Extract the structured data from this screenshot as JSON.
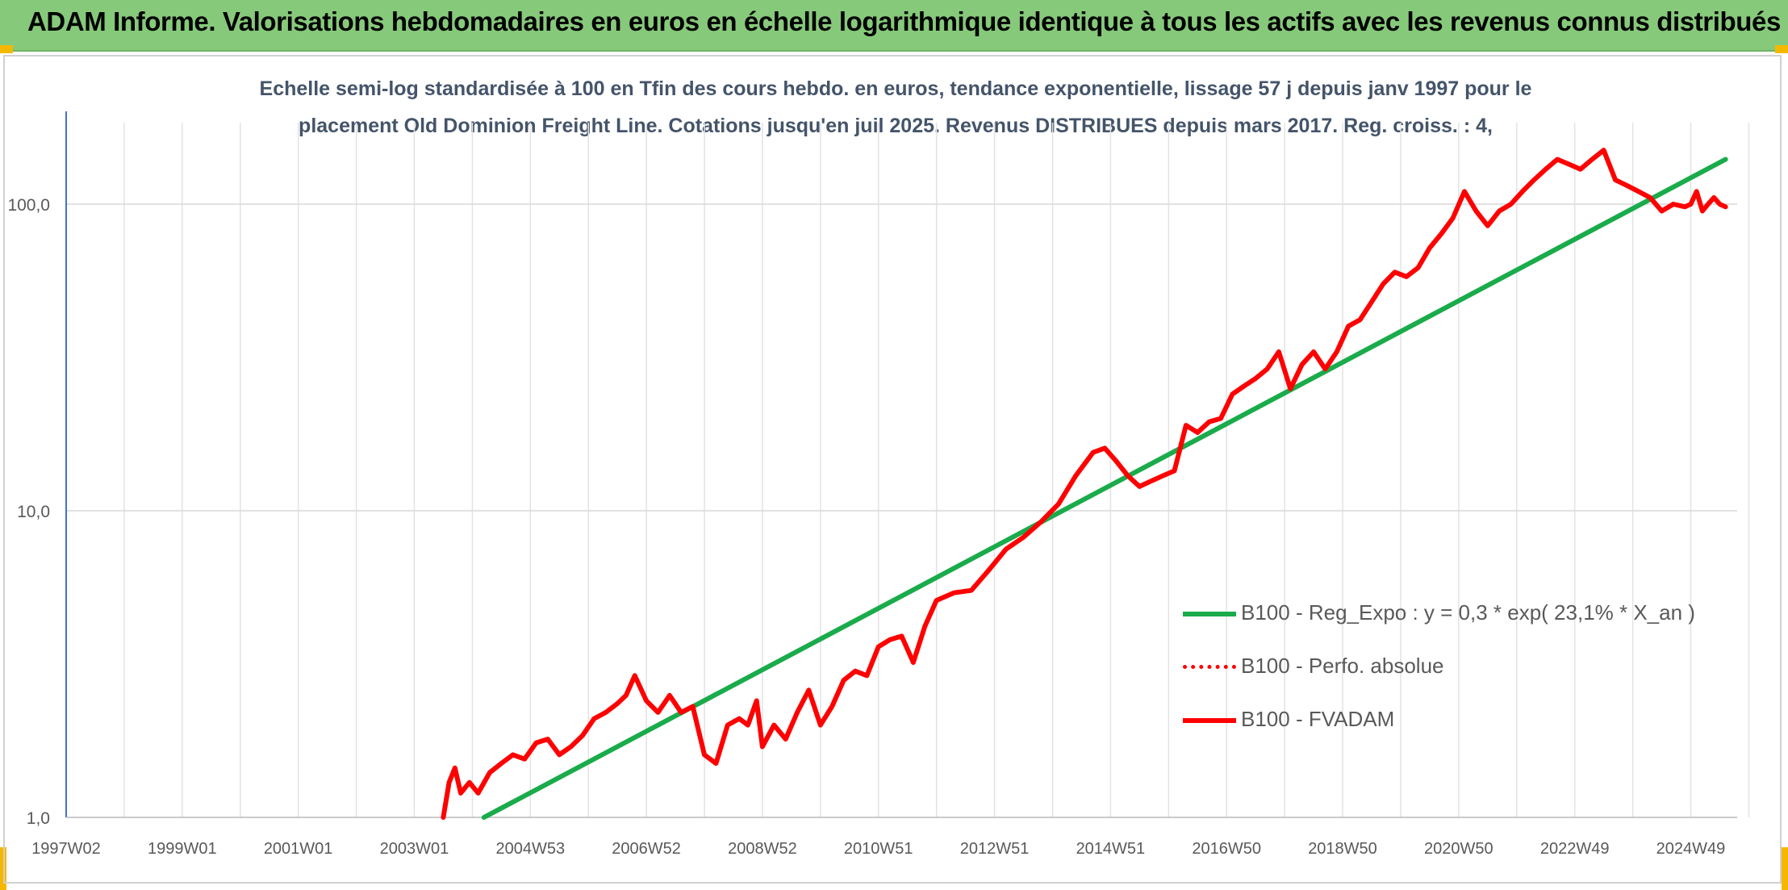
{
  "header": {
    "title": "ADAM Informe. Valorisations hebdomadaires en euros en échelle logarithmique identique à tous les actifs avec les revenus connus distribués"
  },
  "chart_data": {
    "type": "line",
    "title_lines": [
      "Echelle semi-log standardisée à 100 en Tfin des cours hebdo. en euros, tendance exponentielle, lissage 57 j depuis janv 1997 pour le",
      "placement Old Dominion Freight Line. Cotations jusqu'en juil 2025. Revenus DISTRIBUES depuis mars 2017. Reg. croiss. : 4,"
    ],
    "y_scale": "log",
    "ylim": [
      1,
      200
    ],
    "y_ticks": [
      {
        "value": 1,
        "label": "1,0"
      },
      {
        "value": 10,
        "label": "10,0"
      },
      {
        "value": 100,
        "label": "100,0"
      }
    ],
    "xlim": [
      1997.0,
      2025.8
    ],
    "x_ticks": [
      {
        "value": 1997.0,
        "label": "1997W02"
      },
      {
        "value": 1999.0,
        "label": "1999W01"
      },
      {
        "value": 2001.0,
        "label": "2001W01"
      },
      {
        "value": 2003.0,
        "label": "2003W01"
      },
      {
        "value": 2005.0,
        "label": "2004W53"
      },
      {
        "value": 2007.0,
        "label": "2006W52"
      },
      {
        "value": 2009.0,
        "label": "2008W52"
      },
      {
        "value": 2011.0,
        "label": "2010W51"
      },
      {
        "value": 2013.0,
        "label": "2012W51"
      },
      {
        "value": 2015.0,
        "label": "2014W51"
      },
      {
        "value": 2017.0,
        "label": "2016W50"
      },
      {
        "value": 2019.0,
        "label": "2018W50"
      },
      {
        "value": 2021.0,
        "label": "2020W50"
      },
      {
        "value": 2023.0,
        "label": "2022W49"
      },
      {
        "value": 2025.0,
        "label": "2024W49"
      }
    ],
    "grid": true,
    "legend_position": "right",
    "series": [
      {
        "name": "B100 - Reg_Expo : y = 0,3 * exp( 23,1% *  X_an )",
        "color": "#1aab4b",
        "style": "solid",
        "x": [
          2004.2,
          2025.6
        ],
        "y": [
          1.0,
          140
        ]
      },
      {
        "name": "B100 - Perfo. absolue",
        "color": "#ff0000",
        "style": "dotted",
        "x": [],
        "y": []
      },
      {
        "name": "B100 - FVADAM",
        "color": "#ff0000",
        "style": "solid",
        "x": [
          2003.5,
          2003.6,
          2003.7,
          2003.8,
          2003.95,
          2004.1,
          2004.3,
          2004.5,
          2004.7,
          2004.9,
          2005.1,
          2005.3,
          2005.5,
          2005.7,
          2005.9,
          2006.1,
          2006.3,
          2006.5,
          2006.65,
          2006.8,
          2007.0,
          2007.2,
          2007.4,
          2007.6,
          2007.8,
          2008.0,
          2008.2,
          2008.4,
          2008.6,
          2008.75,
          2008.9,
          2009.0,
          2009.2,
          2009.4,
          2009.6,
          2009.8,
          2010.0,
          2010.2,
          2010.4,
          2010.6,
          2010.8,
          2011.0,
          2011.2,
          2011.4,
          2011.6,
          2011.8,
          2012.0,
          2012.3,
          2012.6,
          2012.9,
          2013.2,
          2013.5,
          2013.8,
          2014.1,
          2014.4,
          2014.7,
          2014.9,
          2015.1,
          2015.3,
          2015.5,
          2015.7,
          2015.9,
          2016.1,
          2016.3,
          2016.5,
          2016.7,
          2016.9,
          2017.1,
          2017.3,
          2017.5,
          2017.7,
          2017.9,
          2018.1,
          2018.3,
          2018.5,
          2018.7,
          2018.9,
          2019.1,
          2019.3,
          2019.5,
          2019.7,
          2019.9,
          2020.1,
          2020.3,
          2020.5,
          2020.7,
          2020.9,
          2021.1,
          2021.3,
          2021.5,
          2021.7,
          2021.9,
          2022.1,
          2022.3,
          2022.5,
          2022.7,
          2022.9,
          2023.1,
          2023.3,
          2023.5,
          2023.7,
          2023.9,
          2024.1,
          2024.3,
          2024.5,
          2024.7,
          2024.9,
          2025.0,
          2025.1,
          2025.2,
          2025.3,
          2025.4,
          2025.5,
          2025.6
        ],
        "y": [
          1.0,
          1.3,
          1.45,
          1.2,
          1.3,
          1.2,
          1.4,
          1.5,
          1.6,
          1.55,
          1.75,
          1.8,
          1.6,
          1.7,
          1.85,
          2.1,
          2.2,
          2.35,
          2.5,
          2.9,
          2.4,
          2.2,
          2.5,
          2.2,
          2.3,
          1.6,
          1.5,
          2.0,
          2.1,
          2.0,
          2.4,
          1.7,
          2.0,
          1.8,
          2.2,
          2.6,
          2.0,
          2.3,
          2.8,
          3.0,
          2.9,
          3.6,
          3.8,
          3.9,
          3.2,
          4.2,
          5.1,
          5.4,
          5.5,
          6.4,
          7.5,
          8.2,
          9.2,
          10.5,
          13.0,
          15.5,
          16.0,
          14.5,
          13.0,
          12.0,
          12.5,
          13.0,
          13.5,
          19.0,
          18.0,
          19.5,
          20.0,
          24.0,
          25.5,
          27.0,
          29.0,
          33.0,
          25.0,
          30.0,
          33.0,
          29.0,
          33.0,
          40.0,
          42.0,
          48.0,
          55.0,
          60.0,
          58.0,
          62.0,
          72.0,
          80.0,
          90.0,
          110.0,
          95.0,
          85.0,
          95.0,
          100.0,
          110.0,
          120.0,
          130.0,
          140.0,
          135.0,
          130.0,
          140.0,
          150.0,
          120.0,
          115.0,
          110.0,
          105.0,
          95.0,
          100.0,
          98.0,
          100.0,
          110.0,
          95.0,
          100.0,
          105.0,
          100.0,
          98.0
        ]
      }
    ]
  }
}
